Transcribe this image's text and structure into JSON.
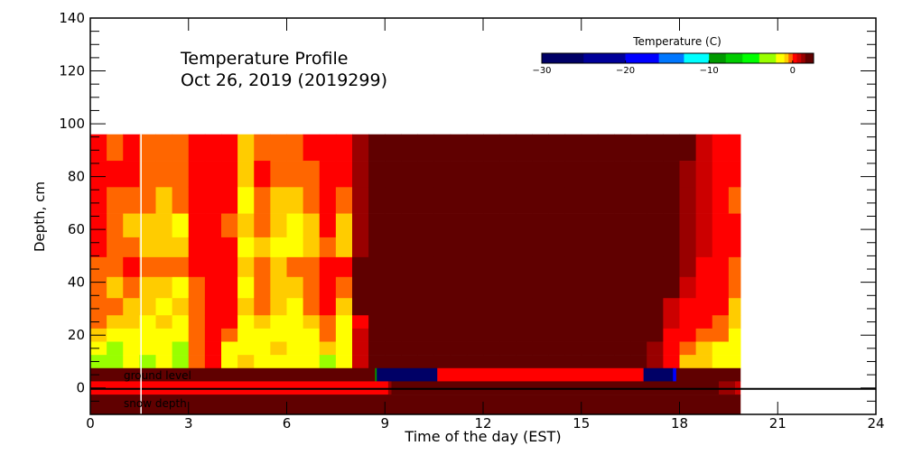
{
  "chart_data": {
    "type": "heatmap",
    "title_lines": [
      "Temperature Profile",
      "Oct 26, 2019 (2019299)"
    ],
    "xlabel": "Time of the day (EST)",
    "ylabel": "Depth, cm",
    "xlim": [
      0,
      24
    ],
    "ylim": [
      -10,
      140
    ],
    "x_ticks": [
      0,
      3,
      6,
      9,
      12,
      15,
      18,
      21,
      24
    ],
    "y_ticks": [
      0,
      20,
      40,
      60,
      80,
      100,
      120,
      140
    ],
    "y_minor_step": 5,
    "grid": false,
    "colorbar": {
      "title": "Temperature (C)",
      "ticks": [
        -30,
        -20,
        -10,
        0
      ],
      "range": [
        -30,
        2.5
      ],
      "levels": [
        {
          "min": -30,
          "max": -25,
          "color": "#000066"
        },
        {
          "min": -25,
          "max": -20,
          "color": "#000099"
        },
        {
          "min": -20,
          "max": -16,
          "color": "#0000ff"
        },
        {
          "min": -16,
          "max": -13,
          "color": "#0077ff"
        },
        {
          "min": -13,
          "max": -10,
          "color": "#00ffff"
        },
        {
          "min": -10,
          "max": -8,
          "color": "#009900"
        },
        {
          "min": -8,
          "max": -6,
          "color": "#00cc00"
        },
        {
          "min": -6,
          "max": -4,
          "color": "#00ff00"
        },
        {
          "min": -4,
          "max": -2,
          "color": "#99ff00"
        },
        {
          "min": -2,
          "max": -1,
          "color": "#ffff00"
        },
        {
          "min": -1,
          "max": -0.5,
          "color": "#ffcc00"
        },
        {
          "min": -0.5,
          "max": 0,
          "color": "#ff6600"
        },
        {
          "min": 0,
          "max": 0.5,
          "color": "#ff0000"
        },
        {
          "min": 0.5,
          "max": 1,
          "color": "#cc0000"
        },
        {
          "min": 1,
          "max": 1.5,
          "color": "#990000"
        },
        {
          "min": 1.5,
          "max": 2.5,
          "color": "#600000"
        }
      ]
    },
    "time_start": 0,
    "time_step": 0.5,
    "time_end": 19.86,
    "depth_edges": [
      96,
      86,
      76,
      66,
      57,
      49.5,
      42,
      34,
      27.5,
      22.5,
      17.5,
      12.5,
      7.5
    ],
    "values_by_time": [
      [
        0.25,
        0.25,
        0.25,
        0.25,
        0.25,
        -0.25,
        -0.25,
        -0.25,
        -0.25,
        -0.75,
        -1.5,
        -3
      ],
      [
        -0.25,
        0.25,
        -0.25,
        -0.25,
        -0.25,
        -0.25,
        -0.75,
        -0.25,
        -0.75,
        -1.5,
        -3,
        -3
      ],
      [
        0.25,
        0.25,
        -0.25,
        -0.75,
        -0.25,
        0.25,
        -0.25,
        -0.75,
        -0.75,
        -1.5,
        -1.5,
        -1.5
      ],
      [
        -0.25,
        -0.25,
        -0.25,
        -0.75,
        -0.75,
        -0.25,
        -0.75,
        -0.75,
        -1.5,
        -1.5,
        -1.5,
        -3
      ],
      [
        -0.25,
        -0.25,
        -0.75,
        -0.75,
        -0.75,
        -0.25,
        -0.75,
        -1.5,
        -0.75,
        -1.5,
        -1.5,
        -1.5
      ],
      [
        -0.25,
        -0.25,
        -0.25,
        -1.5,
        -0.75,
        -0.25,
        -1.5,
        -0.75,
        -1.5,
        -1.5,
        -3,
        -3
      ],
      [
        0.25,
        0.25,
        0.25,
        0.25,
        0.25,
        0.25,
        -0.25,
        -0.25,
        -0.25,
        -0.25,
        -0.25,
        -0.25
      ],
      [
        0.25,
        0.25,
        0.25,
        0.25,
        0.25,
        0.25,
        0.25,
        0.25,
        0.25,
        0.25,
        0.25,
        0.25
      ],
      [
        0.25,
        0.25,
        0.25,
        -0.25,
        0.25,
        0.25,
        0.25,
        0.25,
        0.25,
        -0.25,
        -1.5,
        -1.5
      ],
      [
        -0.75,
        -0.75,
        -1.5,
        -0.75,
        -1.5,
        -0.75,
        -1.5,
        -0.75,
        -1.5,
        -1.5,
        -1.5,
        -0.75
      ],
      [
        -0.25,
        0.25,
        -0.25,
        -0.25,
        -0.75,
        -0.25,
        -0.25,
        -0.25,
        -0.75,
        -1.5,
        -1.5,
        -1.5
      ],
      [
        -0.25,
        -0.25,
        -0.75,
        -0.75,
        -1.5,
        -0.75,
        -0.75,
        -0.75,
        -1.5,
        -1.5,
        -0.75,
        -1.5
      ],
      [
        -0.25,
        -0.25,
        -0.75,
        -1.5,
        -1.5,
        -0.25,
        -0.75,
        -1.5,
        -1.5,
        -1.5,
        -1.5,
        -1.5
      ],
      [
        0.25,
        -0.25,
        -0.25,
        -0.75,
        -0.75,
        -0.25,
        -0.25,
        -0.25,
        -0.75,
        -1.5,
        -1.5,
        -1.5
      ],
      [
        0.25,
        0.25,
        0.25,
        0.25,
        -0.25,
        0.25,
        0.25,
        0.25,
        -0.25,
        -0.25,
        -0.75,
        -3
      ],
      [
        0.25,
        0.25,
        -0.25,
        -0.75,
        -0.75,
        0.25,
        -0.25,
        -0.75,
        -1.5,
        -1.5,
        -1.5,
        -1.5
      ],
      [
        1.25,
        1.25,
        1.25,
        1.25,
        1.25,
        2,
        2,
        2,
        0.25,
        0.75,
        0.75,
        0.75
      ],
      [
        2,
        2,
        2,
        2,
        2,
        2,
        2,
        2,
        2,
        2,
        2,
        2
      ],
      [
        2,
        2,
        2,
        2,
        2,
        2,
        2,
        2,
        2,
        2,
        2,
        2
      ],
      [
        2,
        2,
        2,
        2,
        2,
        2,
        2,
        2,
        2,
        2,
        2,
        2
      ],
      [
        2,
        2,
        2,
        2,
        2,
        2,
        2,
        2,
        2,
        2,
        2,
        2
      ],
      [
        2,
        2,
        2,
        2,
        2,
        2,
        2,
        2,
        2,
        2,
        2,
        2
      ],
      [
        2,
        2,
        2,
        2,
        2,
        2,
        2,
        2,
        2,
        2,
        2,
        2
      ],
      [
        2,
        2,
        2,
        2,
        2,
        2,
        2,
        2,
        2,
        2,
        2,
        2
      ],
      [
        2,
        2,
        2,
        2,
        2,
        2,
        2,
        2,
        2,
        2,
        2,
        2
      ],
      [
        2,
        2,
        2,
        2,
        2,
        2,
        2,
        2,
        2,
        2,
        2,
        2
      ],
      [
        2,
        2,
        2,
        2,
        2,
        2,
        2,
        2,
        2,
        2,
        2,
        2
      ],
      [
        2,
        2,
        2,
        2,
        2,
        2,
        2,
        2,
        2,
        2,
        2,
        2
      ],
      [
        2,
        2,
        2,
        2,
        2,
        2,
        2,
        2,
        2,
        2,
        2,
        2
      ],
      [
        2,
        2,
        2,
        2,
        2,
        2,
        2,
        2,
        2,
        2,
        2,
        2
      ],
      [
        2,
        2,
        2,
        2,
        2,
        2,
        2,
        2,
        2,
        2,
        2,
        2
      ],
      [
        2,
        2,
        2,
        2,
        2,
        2,
        2,
        2,
        2,
        2,
        2,
        2
      ],
      [
        2,
        2,
        2,
        2,
        2,
        2,
        2,
        2,
        2,
        2,
        2,
        2
      ],
      [
        2,
        2,
        2,
        2,
        2,
        2,
        2,
        2,
        2,
        2,
        2,
        2
      ],
      [
        2,
        2,
        2,
        2,
        2,
        2,
        2,
        2,
        2,
        2,
        1.25,
        1.25
      ],
      [
        2,
        2,
        2,
        2,
        2,
        2,
        2,
        0.75,
        0.75,
        0.25,
        0.25,
        0.25
      ],
      [
        2,
        1.25,
        1.25,
        1.25,
        1.25,
        1.25,
        0.75,
        0.25,
        0.25,
        0.25,
        -0.25,
        -0.75
      ],
      [
        0.75,
        0.75,
        0.75,
        0.75,
        0.75,
        0.25,
        0.25,
        0.25,
        0.25,
        -0.25,
        -0.75,
        -0.75
      ],
      [
        0.25,
        0.25,
        0.25,
        0.25,
        0.25,
        0.25,
        0.25,
        0.25,
        -0.25,
        -0.25,
        -1.5,
        -1.5
      ],
      [
        0.25,
        0.25,
        -0.25,
        0.25,
        0.25,
        -0.25,
        -0.25,
        -0.75,
        -0.75,
        -1.5,
        -1.5,
        -1.5
      ]
    ],
    "subsurface_rows": [
      {
        "depth_top": 7.5,
        "depth_bottom": 2.5,
        "segments": [
          {
            "start": 0,
            "end": 8.7,
            "value": 2
          },
          {
            "start": 8.7,
            "end": 8.75,
            "value": -9
          },
          {
            "start": 8.75,
            "end": 10.6,
            "value": -28
          },
          {
            "start": 10.6,
            "end": 16.9,
            "value": 0.25
          },
          {
            "start": 16.9,
            "end": 17.8,
            "value": -28
          },
          {
            "start": 17.8,
            "end": 17.9,
            "value": -18
          },
          {
            "start": 17.9,
            "end": 19.86,
            "value": 2
          }
        ]
      },
      {
        "depth_top": 2.5,
        "depth_bottom": -2.5,
        "segments": [
          {
            "start": 0,
            "end": 9.1,
            "value": 0.25
          },
          {
            "start": 9.1,
            "end": 9.2,
            "value": 1.25
          },
          {
            "start": 9.2,
            "end": 19.2,
            "value": 2
          },
          {
            "start": 19.2,
            "end": 19.7,
            "value": 1.25
          },
          {
            "start": 19.7,
            "end": 19.86,
            "value": 0.75
          }
        ]
      },
      {
        "depth_top": -2.5,
        "depth_bottom": -10,
        "segments": [
          {
            "start": 0,
            "end": 19.86,
            "value": 2
          }
        ]
      }
    ],
    "ground_level_depth": 0,
    "current_time_marker": 1.55,
    "annotations": [
      "ground level",
      "snow depth"
    ]
  }
}
